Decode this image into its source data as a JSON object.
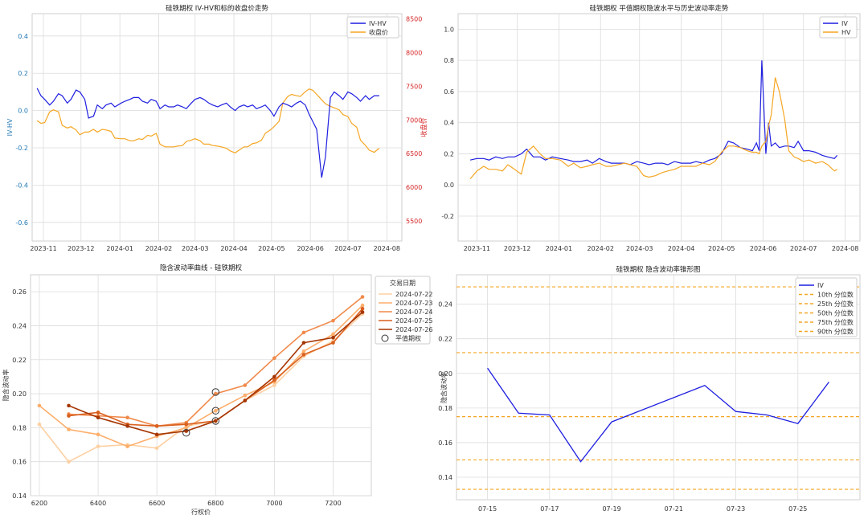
{
  "colors": {
    "iv": "#1f1fe0",
    "hv": "#f5a623",
    "close": "#f5a623",
    "axis_left_blue": "#1f77b4",
    "axis_right_red": "#d62728",
    "grid": "#dcdcdc",
    "pct": "#f5a623",
    "smile": [
      "#fdd0a2",
      "#fdae6b",
      "#f08a4b",
      "#d95f1e",
      "#a63603"
    ]
  },
  "chart_data": [
    {
      "id": "p1",
      "type": "line",
      "title": "硅铁期权 IV-HV和标的收盘价走势",
      "xlabel": "",
      "ylabel": "IV-HV",
      "ylabel_right": "收盘价",
      "x_ticks": [
        "2023-11",
        "2023-12",
        "2024-01",
        "2024-02",
        "2024-03",
        "2024-04",
        "2024-05",
        "2024-06",
        "2024-07",
        "2024-08"
      ],
      "ylim": [
        -0.7,
        0.52
      ],
      "y_ticks": [
        "0.4",
        "0.2",
        "0.0",
        "-0.2",
        "-0.4",
        "-0.6"
      ],
      "y2lim": [
        5200,
        8580
      ],
      "y2_ticks": [
        "8500",
        "8000",
        "7500",
        "7000",
        "6500",
        "6000",
        "5500"
      ],
      "legend": [
        "IV-HV",
        "收盘价"
      ],
      "legend_position": "top-right",
      "dates": [
        "2023-10-27",
        "2023-10-30",
        "2023-11-02",
        "2023-11-06",
        "2023-11-09",
        "2023-11-13",
        "2023-11-16",
        "2023-11-20",
        "2023-11-23",
        "2023-11-27",
        "2023-11-30",
        "2023-12-04",
        "2023-12-07",
        "2023-12-11",
        "2023-12-14",
        "2023-12-18",
        "2023-12-21",
        "2023-12-25",
        "2023-12-28",
        "2024-01-02",
        "2024-01-05",
        "2024-01-09",
        "2024-01-12",
        "2024-01-16",
        "2024-01-19",
        "2024-01-23",
        "2024-01-26",
        "2024-01-30",
        "2024-02-02",
        "2024-02-06",
        "2024-02-09",
        "2024-02-13",
        "2024-02-16",
        "2024-02-20",
        "2024-02-23",
        "2024-02-27",
        "2024-03-01",
        "2024-03-05",
        "2024-03-08",
        "2024-03-12",
        "2024-03-15",
        "2024-03-19",
        "2024-03-22",
        "2024-03-26",
        "2024-03-29",
        "2024-04-02",
        "2024-04-05",
        "2024-04-09",
        "2024-04-12",
        "2024-04-16",
        "2024-04-19",
        "2024-04-23",
        "2024-04-26",
        "2024-04-30",
        "2024-05-03",
        "2024-05-07",
        "2024-05-10",
        "2024-05-14",
        "2024-05-17",
        "2024-05-21",
        "2024-05-24",
        "2024-05-28",
        "2024-05-31",
        "2024-06-03",
        "2024-06-06",
        "2024-06-10",
        "2024-06-13",
        "2024-06-17",
        "2024-06-20",
        "2024-06-24",
        "2024-06-27",
        "2024-07-01",
        "2024-07-04",
        "2024-07-08",
        "2024-07-11",
        "2024-07-15",
        "2024-07-18",
        "2024-07-22",
        "2024-07-26"
      ],
      "series": [
        {
          "name": "IV-HV",
          "axis": "left",
          "values": [
            0.12,
            0.08,
            0.06,
            0.03,
            0.05,
            0.09,
            0.08,
            0.04,
            0.06,
            0.11,
            0.1,
            0.06,
            -0.04,
            -0.03,
            0.03,
            0.01,
            0.03,
            0.04,
            0.02,
            0.04,
            0.05,
            0.06,
            0.07,
            0.07,
            0.05,
            0.04,
            0.06,
            0.05,
            0.01,
            0.03,
            0.02,
            0.02,
            0.03,
            0.02,
            0.01,
            0.04,
            0.06,
            0.07,
            0.06,
            0.04,
            0.03,
            0.02,
            0.03,
            0.04,
            0.02,
            0.0,
            0.02,
            0.03,
            0.02,
            0.03,
            0.01,
            0.02,
            0.03,
            0.0,
            -0.03,
            0.02,
            0.04,
            0.03,
            0.02,
            0.04,
            0.05,
            0.03,
            -0.02,
            -0.06,
            -0.1,
            -0.36,
            -0.25,
            0.07,
            0.1,
            0.08,
            0.06,
            0.1,
            0.09,
            0.07,
            0.05,
            0.08,
            0.06,
            0.08,
            0.08
          ]
        },
        {
          "name": "收盘价",
          "axis": "right",
          "values": [
            6990,
            6950,
            6960,
            7120,
            7150,
            7120,
            6920,
            6880,
            6900,
            6850,
            6780,
            6820,
            6820,
            6860,
            6820,
            6860,
            6850,
            6830,
            6730,
            6720,
            6720,
            6690,
            6690,
            6720,
            6710,
            6770,
            6760,
            6800,
            6640,
            6600,
            6600,
            6600,
            6610,
            6620,
            6680,
            6700,
            6720,
            6690,
            6640,
            6640,
            6620,
            6610,
            6600,
            6580,
            6540,
            6510,
            6550,
            6600,
            6600,
            6650,
            6660,
            6700,
            6800,
            6850,
            6900,
            6980,
            7250,
            7350,
            7380,
            7360,
            7350,
            7420,
            7460,
            7440,
            7380,
            7300,
            7240,
            7200,
            7180,
            7150,
            7080,
            7050,
            6950,
            6890,
            6700,
            6620,
            6550,
            6520,
            6580
          ]
        }
      ]
    },
    {
      "id": "p2",
      "type": "line",
      "title": "硅铁期权 平值期权隐波水平与历史波动率走势",
      "xlabel": "",
      "ylabel": "",
      "x_ticks": [
        "2023-11",
        "2023-12",
        "2024-01",
        "2024-02",
        "2024-03",
        "2024-04",
        "2024-05",
        "2024-06",
        "2024-07",
        "2024-08"
      ],
      "ylim": [
        -0.36,
        1.1
      ],
      "y_ticks": [
        "1.0",
        "0.8",
        "0.6",
        "0.4",
        "0.2",
        "0.0",
        "-0.2"
      ],
      "legend": [
        "IV",
        "HV"
      ],
      "legend_position": "top-right",
      "dates": [
        "2023-10-27",
        "2023-11-01",
        "2023-11-06",
        "2023-11-10",
        "2023-11-15",
        "2023-11-20",
        "2023-11-24",
        "2023-11-29",
        "2023-12-04",
        "2023-12-08",
        "2023-12-13",
        "2023-12-18",
        "2023-12-22",
        "2023-12-27",
        "2024-01-02",
        "2024-01-08",
        "2024-01-12",
        "2024-01-17",
        "2024-01-22",
        "2024-01-26",
        "2024-01-31",
        "2024-02-05",
        "2024-02-09",
        "2024-02-19",
        "2024-02-23",
        "2024-02-28",
        "2024-03-04",
        "2024-03-08",
        "2024-03-13",
        "2024-03-18",
        "2024-03-22",
        "2024-03-27",
        "2024-04-01",
        "2024-04-08",
        "2024-04-12",
        "2024-04-17",
        "2024-04-22",
        "2024-04-26",
        "2024-05-01",
        "2024-05-06",
        "2024-05-10",
        "2024-05-15",
        "2024-05-20",
        "2024-05-24",
        "2024-05-27",
        "2024-05-29",
        "2024-05-31",
        "2024-06-03",
        "2024-06-05",
        "2024-06-07",
        "2024-06-10",
        "2024-06-13",
        "2024-06-17",
        "2024-06-20",
        "2024-06-24",
        "2024-06-27",
        "2024-07-01",
        "2024-07-05",
        "2024-07-10",
        "2024-07-15",
        "2024-07-19",
        "2024-07-24",
        "2024-07-26"
      ],
      "series": [
        {
          "name": "IV",
          "values": [
            0.16,
            0.17,
            0.17,
            0.16,
            0.18,
            0.17,
            0.18,
            0.18,
            0.2,
            0.23,
            0.18,
            0.18,
            0.16,
            0.18,
            0.17,
            0.16,
            0.15,
            0.15,
            0.16,
            0.14,
            0.17,
            0.15,
            0.14,
            0.14,
            0.13,
            0.15,
            0.14,
            0.13,
            0.14,
            0.14,
            0.13,
            0.15,
            0.14,
            0.14,
            0.15,
            0.14,
            0.16,
            0.17,
            0.2,
            0.28,
            0.27,
            0.24,
            0.23,
            0.22,
            0.27,
            0.22,
            0.8,
            0.2,
            0.4,
            0.25,
            0.27,
            0.24,
            0.25,
            0.25,
            0.24,
            0.28,
            0.22,
            0.22,
            0.21,
            0.19,
            0.18,
            0.17,
            0.19
          ]
        },
        {
          "name": "HV",
          "values": [
            0.04,
            0.09,
            0.12,
            0.1,
            0.1,
            0.09,
            0.13,
            0.1,
            0.07,
            0.21,
            0.25,
            0.2,
            0.17,
            0.17,
            0.16,
            0.12,
            0.14,
            0.11,
            0.12,
            0.13,
            0.14,
            0.12,
            0.12,
            0.14,
            0.13,
            0.12,
            0.06,
            0.05,
            0.06,
            0.08,
            0.09,
            0.1,
            0.12,
            0.12,
            0.12,
            0.14,
            0.13,
            0.15,
            0.21,
            0.25,
            0.25,
            0.24,
            0.22,
            0.21,
            0.21,
            0.2,
            0.25,
            0.28,
            0.38,
            0.45,
            0.69,
            0.6,
            0.42,
            0.22,
            0.18,
            0.17,
            0.15,
            0.16,
            0.14,
            0.15,
            0.13,
            0.09,
            0.1
          ]
        }
      ]
    },
    {
      "id": "p3",
      "type": "line",
      "title": "隐含波动率曲线 - 硅铁期权",
      "xlabel": "行权价",
      "ylabel": "隐含波动率",
      "x_range": [
        6170,
        7330
      ],
      "x_ticks": [
        6200,
        6400,
        6600,
        6800,
        7000,
        7200
      ],
      "ylim": [
        0.14,
        0.27
      ],
      "y_ticks": [
        0.14,
        0.16,
        0.18,
        0.2,
        0.22,
        0.24,
        0.26
      ],
      "legend_title": "交易日期",
      "legend_position": "outside-right",
      "atm_label": "平值期权",
      "series": [
        {
          "name": "2024-07-22",
          "x": [
            6200,
            6300,
            6400,
            6500,
            6600,
            6700,
            6800,
            6900,
            7000,
            7100,
            7200,
            7300
          ],
          "values": [
            0.182,
            0.16,
            0.169,
            0.17,
            0.168,
            0.181,
            0.184,
            0.196,
            0.205,
            0.222,
            0.231,
            0.247
          ]
        },
        {
          "name": "2024-07-23",
          "x": [
            6200,
            6300,
            6400,
            6500,
            6600,
            6700,
            6800,
            6900,
            7000,
            7100,
            7200,
            7300
          ],
          "values": [
            0.193,
            0.179,
            0.176,
            0.169,
            0.175,
            0.18,
            0.19,
            0.199,
            0.207,
            0.225,
            0.235,
            0.252
          ]
        },
        {
          "name": "2024-07-24",
          "x": [
            6300,
            6400,
            6500,
            6600,
            6700,
            6800,
            6900,
            7000,
            7100,
            7200,
            7300
          ],
          "values": [
            0.188,
            0.187,
            0.186,
            0.181,
            0.183,
            0.2,
            0.205,
            0.221,
            0.236,
            0.243,
            0.257
          ]
        },
        {
          "name": "2024-07-25",
          "x": [
            6300,
            6400,
            6500,
            6600,
            6700,
            6800,
            6900,
            7000,
            7100,
            7200,
            7300
          ],
          "values": [
            0.187,
            0.189,
            0.182,
            0.181,
            0.182,
            0.184,
            0.196,
            0.208,
            0.223,
            0.23,
            0.25
          ]
        },
        {
          "name": "2024-07-26",
          "x": [
            6300,
            6400,
            6500,
            6600,
            6700,
            6800,
            6900,
            7000,
            7100,
            7200,
            7300
          ],
          "values": [
            0.193,
            0.186,
            0.181,
            0.176,
            0.178,
            0.184,
            0.196,
            0.21,
            0.23,
            0.233,
            0.248
          ]
        }
      ],
      "atm_points": [
        {
          "x": 6700,
          "y": 0.177
        },
        {
          "x": 6800,
          "y": 0.184
        },
        {
          "x": 6800,
          "y": 0.19
        },
        {
          "x": 6800,
          "y": 0.201
        }
      ]
    },
    {
      "id": "p4",
      "type": "line",
      "title": "硅铁期权 隐含波动率锥形图",
      "xlabel": "",
      "ylabel": "隐含波动率",
      "x_ticks": [
        "07-15",
        "07-17",
        "07-19",
        "07-21",
        "07-23",
        "07-25"
      ],
      "ylim": [
        0.127,
        0.257
      ],
      "y_ticks": [
        "0.24",
        "0.22",
        "0.20",
        "0.18",
        "0.16",
        "0.14"
      ],
      "legend": [
        "IV",
        "10th 分位数",
        "25th 分位数",
        "50th 分位数",
        "75th 分位数",
        "90th 分位数"
      ],
      "legend_position": "top-right",
      "dates": [
        "07-15",
        "07-16",
        "07-17",
        "07-18",
        "07-19",
        "07-22",
        "07-23",
        "07-24",
        "07-25",
        "07-26"
      ],
      "series": [
        {
          "name": "IV",
          "values": [
            0.203,
            0.177,
            0.176,
            0.149,
            0.172,
            0.193,
            0.178,
            0.176,
            0.171,
            0.195
          ]
        }
      ],
      "percentiles": [
        {
          "name": "10th 分位数",
          "value": 0.133
        },
        {
          "name": "25th 分位数",
          "value": 0.15
        },
        {
          "name": "50th 分位数",
          "value": 0.175
        },
        {
          "name": "75th 分位数",
          "value": 0.212
        },
        {
          "name": "90th 分位数",
          "value": 0.25
        }
      ]
    }
  ]
}
